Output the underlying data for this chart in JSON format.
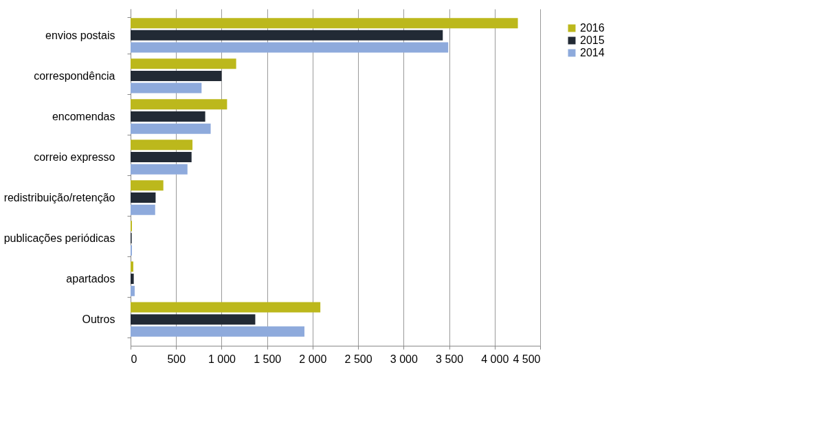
{
  "chart_data": {
    "type": "bar",
    "orientation": "horizontal",
    "categories": [
      "envios postais",
      "correspondência",
      "encomendas",
      "correio expresso",
      "redistribuição/retenção",
      "publicações periódicas",
      "apartados",
      "Outros"
    ],
    "series": [
      {
        "name": "2016",
        "color": "#bcb81c",
        "values": [
          4255,
          1160,
          1060,
          680,
          360,
          15,
          30,
          2085
        ]
      },
      {
        "name": "2015",
        "color": "#222a35",
        "values": [
          3430,
          1000,
          820,
          670,
          275,
          12,
          35,
          1370
        ]
      },
      {
        "name": "2014",
        "color": "#8eaadc",
        "values": [
          3490,
          780,
          880,
          625,
          270,
          15,
          45,
          1910
        ]
      }
    ],
    "xlim": [
      0,
      4500
    ],
    "xticks": [
      0,
      500,
      {
        "value": 1000,
        "label": "1 000"
      },
      {
        "value": 1500,
        "label": "1 500"
      },
      {
        "value": 2000,
        "label": "2 000"
      },
      {
        "value": 2500,
        "label": "2 500"
      },
      {
        "value": 3000,
        "label": "3 000"
      },
      {
        "value": 3500,
        "label": "3 500"
      },
      {
        "value": 4000,
        "label": "4 000"
      },
      {
        "value": 4500,
        "label": "4 500"
      }
    ],
    "grid": "x",
    "legend": "right"
  }
}
